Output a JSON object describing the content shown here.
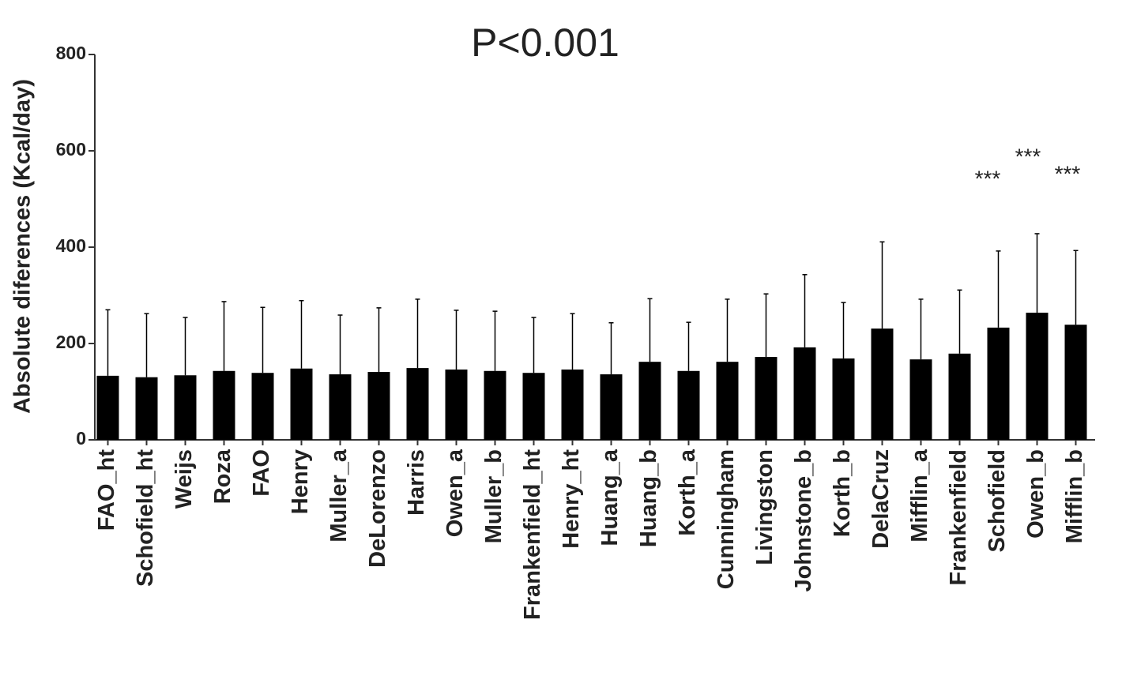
{
  "chart_data": {
    "type": "bar",
    "title": "P<0.001",
    "y_label": "Absolute diferences (Kcal/day)",
    "categories": [
      "FAO_ht",
      "Schofield_ht",
      "Weijs",
      "Roza",
      "FAO",
      "Henry",
      "Muller_a",
      "DeLorenzo",
      "Harris",
      "Owen_a",
      "Muller_b",
      "Frankenfield_ht",
      "Henry_ht",
      "Huang_a",
      "Huang_b",
      "Korth_a",
      "Cunningham",
      "Livingston",
      "Johnstone_b",
      "Korth_b",
      "DelaCruz",
      "Mifflin_a",
      "Frankenfield",
      "Schofield",
      "Owen_b",
      "Mifflin_b"
    ],
    "values": [
      133,
      130,
      134,
      143,
      139,
      148,
      136,
      141,
      149,
      146,
      143,
      139,
      146,
      136,
      162,
      143,
      162,
      172,
      192,
      169,
      231,
      167,
      179,
      233,
      264,
      239
    ],
    "errors": [
      137,
      132,
      120,
      144,
      136,
      141,
      123,
      133,
      143,
      123,
      124,
      115,
      116,
      107,
      131,
      101,
      130,
      131,
      151,
      116,
      180,
      125,
      132,
      159,
      164,
      154
    ],
    "color": "#000000",
    "annotations": [
      "***",
      "***",
      "***"
    ],
    "ylim": [
      0,
      800
    ],
    "yticks": [
      0,
      200,
      400,
      600,
      800
    ]
  }
}
